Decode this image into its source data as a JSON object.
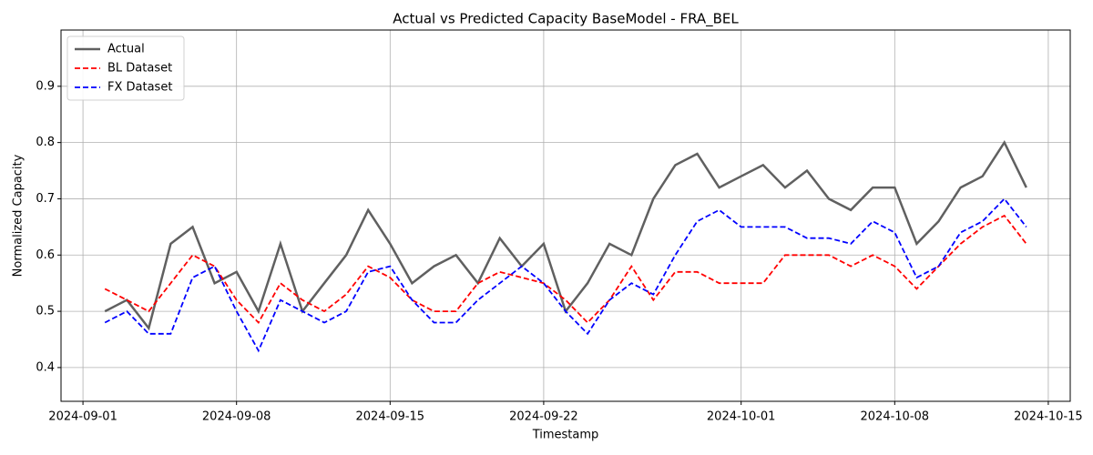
{
  "chart_data": {
    "type": "line",
    "title": "Actual vs Predicted Capacity BaseModel - FRA_BEL",
    "x_label": "Timestamp",
    "y_label": "Normalized Capacity",
    "x": [
      "2024-09-02",
      "2024-09-03",
      "2024-09-04",
      "2024-09-05",
      "2024-09-06",
      "2024-09-07",
      "2024-09-08",
      "2024-09-09",
      "2024-09-10",
      "2024-09-11",
      "2024-09-12",
      "2024-09-13",
      "2024-09-14",
      "2024-09-15",
      "2024-09-16",
      "2024-09-17",
      "2024-09-18",
      "2024-09-19",
      "2024-09-20",
      "2024-09-21",
      "2024-09-22",
      "2024-09-23",
      "2024-09-24",
      "2024-09-25",
      "2024-09-26",
      "2024-09-27",
      "2024-09-28",
      "2024-09-29",
      "2024-09-30",
      "2024-10-01",
      "2024-10-02",
      "2024-10-03",
      "2024-10-04",
      "2024-10-05",
      "2024-10-06",
      "2024-10-07",
      "2024-10-08",
      "2024-10-09",
      "2024-10-10",
      "2024-10-11",
      "2024-10-12",
      "2024-10-13",
      "2024-10-14"
    ],
    "series": [
      {
        "name": "Actual",
        "color": "#606060",
        "dash": "solid",
        "values": [
          0.5,
          0.52,
          0.47,
          0.62,
          0.65,
          0.55,
          0.57,
          0.5,
          0.62,
          0.5,
          0.55,
          0.6,
          0.68,
          0.62,
          0.55,
          0.58,
          0.6,
          0.55,
          0.63,
          0.58,
          0.62,
          0.5,
          0.55,
          0.62,
          0.6,
          0.7,
          0.76,
          0.78,
          0.72,
          0.74,
          0.76,
          0.72,
          0.75,
          0.7,
          0.68,
          0.72,
          0.72,
          0.62,
          0.66,
          0.72,
          0.74,
          0.8,
          0.72
        ]
      },
      {
        "name": "BL Dataset",
        "color": "#ff0000",
        "dash": "dashed",
        "values": [
          0.54,
          0.52,
          0.5,
          0.55,
          0.6,
          0.58,
          0.52,
          0.48,
          0.55,
          0.52,
          0.5,
          0.53,
          0.58,
          0.56,
          0.52,
          0.5,
          0.5,
          0.55,
          0.57,
          0.56,
          0.55,
          0.52,
          0.48,
          0.52,
          0.58,
          0.52,
          0.57,
          0.57,
          0.55,
          0.55,
          0.55,
          0.6,
          0.6,
          0.6,
          0.58,
          0.6,
          0.58,
          0.54,
          0.58,
          0.62,
          0.65,
          0.67,
          0.62
        ]
      },
      {
        "name": "FX Dataset",
        "color": "#0000ff",
        "dash": "dashed",
        "values": [
          0.48,
          0.5,
          0.46,
          0.46,
          0.56,
          0.58,
          0.5,
          0.43,
          0.52,
          0.5,
          0.48,
          0.5,
          0.57,
          0.58,
          0.52,
          0.48,
          0.48,
          0.52,
          0.55,
          0.58,
          0.55,
          0.5,
          0.46,
          0.52,
          0.55,
          0.53,
          0.6,
          0.66,
          0.68,
          0.65,
          0.65,
          0.65,
          0.63,
          0.63,
          0.62,
          0.66,
          0.64,
          0.56,
          0.58,
          0.64,
          0.66,
          0.7,
          0.65
        ]
      }
    ],
    "xlim": [
      "2024-08-31",
      "2024-10-16"
    ],
    "xticks": [
      "2024-09-01",
      "2024-09-08",
      "2024-09-15",
      "2024-09-22",
      "2024-10-01",
      "2024-10-08",
      "2024-10-15"
    ],
    "ylim": [
      0.34,
      1.0
    ],
    "yticks": [
      0.4,
      0.5,
      0.6,
      0.7,
      0.8,
      0.9
    ],
    "grid": true,
    "legend": "upper left"
  }
}
